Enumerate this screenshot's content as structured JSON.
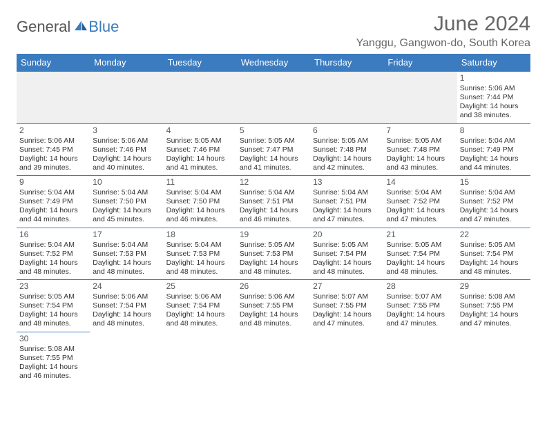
{
  "logo": {
    "part1": "General",
    "part2": "Blue"
  },
  "header": {
    "title": "June 2024",
    "subtitle": "Yanggu, Gangwon-do, South Korea"
  },
  "colors": {
    "header_bg": "#3b7bbf",
    "header_text": "#ffffff",
    "border": "#3b7bbf",
    "blank_bg": "#f0f0f0",
    "title_color": "#666666",
    "text_color": "#333333"
  },
  "calendar": {
    "day_headers": [
      "Sunday",
      "Monday",
      "Tuesday",
      "Wednesday",
      "Thursday",
      "Friday",
      "Saturday"
    ],
    "first_weekday": 6,
    "days": [
      {
        "n": 1,
        "sunrise": "5:06 AM",
        "sunset": "7:44 PM",
        "dl": "14 hours and 38 minutes."
      },
      {
        "n": 2,
        "sunrise": "5:06 AM",
        "sunset": "7:45 PM",
        "dl": "14 hours and 39 minutes."
      },
      {
        "n": 3,
        "sunrise": "5:06 AM",
        "sunset": "7:46 PM",
        "dl": "14 hours and 40 minutes."
      },
      {
        "n": 4,
        "sunrise": "5:05 AM",
        "sunset": "7:46 PM",
        "dl": "14 hours and 41 minutes."
      },
      {
        "n": 5,
        "sunrise": "5:05 AM",
        "sunset": "7:47 PM",
        "dl": "14 hours and 41 minutes."
      },
      {
        "n": 6,
        "sunrise": "5:05 AM",
        "sunset": "7:48 PM",
        "dl": "14 hours and 42 minutes."
      },
      {
        "n": 7,
        "sunrise": "5:05 AM",
        "sunset": "7:48 PM",
        "dl": "14 hours and 43 minutes."
      },
      {
        "n": 8,
        "sunrise": "5:04 AM",
        "sunset": "7:49 PM",
        "dl": "14 hours and 44 minutes."
      },
      {
        "n": 9,
        "sunrise": "5:04 AM",
        "sunset": "7:49 PM",
        "dl": "14 hours and 44 minutes."
      },
      {
        "n": 10,
        "sunrise": "5:04 AM",
        "sunset": "7:50 PM",
        "dl": "14 hours and 45 minutes."
      },
      {
        "n": 11,
        "sunrise": "5:04 AM",
        "sunset": "7:50 PM",
        "dl": "14 hours and 46 minutes."
      },
      {
        "n": 12,
        "sunrise": "5:04 AM",
        "sunset": "7:51 PM",
        "dl": "14 hours and 46 minutes."
      },
      {
        "n": 13,
        "sunrise": "5:04 AM",
        "sunset": "7:51 PM",
        "dl": "14 hours and 47 minutes."
      },
      {
        "n": 14,
        "sunrise": "5:04 AM",
        "sunset": "7:52 PM",
        "dl": "14 hours and 47 minutes."
      },
      {
        "n": 15,
        "sunrise": "5:04 AM",
        "sunset": "7:52 PM",
        "dl": "14 hours and 47 minutes."
      },
      {
        "n": 16,
        "sunrise": "5:04 AM",
        "sunset": "7:52 PM",
        "dl": "14 hours and 48 minutes."
      },
      {
        "n": 17,
        "sunrise": "5:04 AM",
        "sunset": "7:53 PM",
        "dl": "14 hours and 48 minutes."
      },
      {
        "n": 18,
        "sunrise": "5:04 AM",
        "sunset": "7:53 PM",
        "dl": "14 hours and 48 minutes."
      },
      {
        "n": 19,
        "sunrise": "5:05 AM",
        "sunset": "7:53 PM",
        "dl": "14 hours and 48 minutes."
      },
      {
        "n": 20,
        "sunrise": "5:05 AM",
        "sunset": "7:54 PM",
        "dl": "14 hours and 48 minutes."
      },
      {
        "n": 21,
        "sunrise": "5:05 AM",
        "sunset": "7:54 PM",
        "dl": "14 hours and 48 minutes."
      },
      {
        "n": 22,
        "sunrise": "5:05 AM",
        "sunset": "7:54 PM",
        "dl": "14 hours and 48 minutes."
      },
      {
        "n": 23,
        "sunrise": "5:05 AM",
        "sunset": "7:54 PM",
        "dl": "14 hours and 48 minutes."
      },
      {
        "n": 24,
        "sunrise": "5:06 AM",
        "sunset": "7:54 PM",
        "dl": "14 hours and 48 minutes."
      },
      {
        "n": 25,
        "sunrise": "5:06 AM",
        "sunset": "7:54 PM",
        "dl": "14 hours and 48 minutes."
      },
      {
        "n": 26,
        "sunrise": "5:06 AM",
        "sunset": "7:55 PM",
        "dl": "14 hours and 48 minutes."
      },
      {
        "n": 27,
        "sunrise": "5:07 AM",
        "sunset": "7:55 PM",
        "dl": "14 hours and 47 minutes."
      },
      {
        "n": 28,
        "sunrise": "5:07 AM",
        "sunset": "7:55 PM",
        "dl": "14 hours and 47 minutes."
      },
      {
        "n": 29,
        "sunrise": "5:08 AM",
        "sunset": "7:55 PM",
        "dl": "14 hours and 47 minutes."
      },
      {
        "n": 30,
        "sunrise": "5:08 AM",
        "sunset": "7:55 PM",
        "dl": "14 hours and 46 minutes."
      }
    ]
  },
  "labels": {
    "sunrise": "Sunrise:",
    "sunset": "Sunset:",
    "daylight": "Daylight:"
  }
}
